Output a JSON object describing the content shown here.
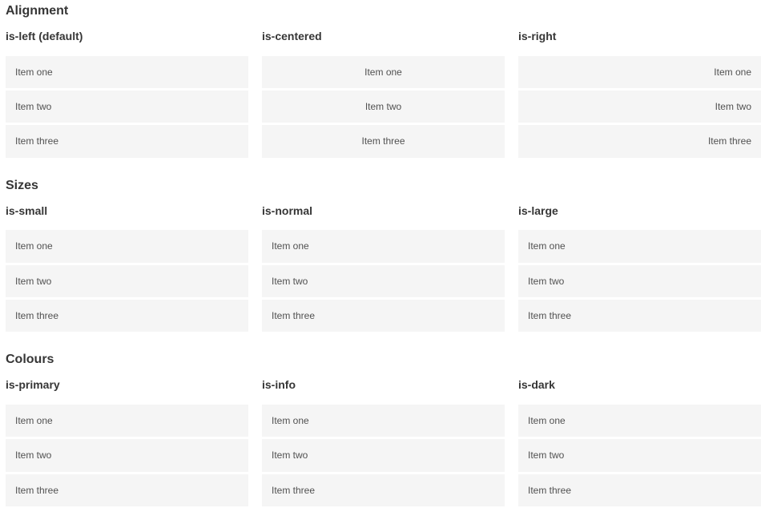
{
  "sections": [
    {
      "title": "Alignment",
      "groups": [
        {
          "label": "is-left (default)",
          "items": [
            "Item one",
            "Item two",
            "Item three"
          ]
        },
        {
          "label": "is-centered",
          "items": [
            "Item one",
            "Item two",
            "Item three"
          ]
        },
        {
          "label": "is-right",
          "items": [
            "Item one",
            "Item two",
            "Item three"
          ]
        }
      ]
    },
    {
      "title": "Sizes",
      "groups": [
        {
          "label": "is-small",
          "items": [
            "Item one",
            "Item two",
            "Item three"
          ]
        },
        {
          "label": "is-normal",
          "items": [
            "Item one",
            "Item two",
            "Item three"
          ]
        },
        {
          "label": "is-large",
          "items": [
            "Item one",
            "Item two",
            "Item three"
          ]
        }
      ]
    },
    {
      "title": "Colours",
      "groups": [
        {
          "label": "is-primary",
          "items": [
            "Item one",
            "Item two",
            "Item three"
          ]
        },
        {
          "label": "is-info",
          "items": [
            "Item one",
            "Item two",
            "Item three"
          ]
        },
        {
          "label": "is-dark",
          "items": [
            "Item one",
            "Item two",
            "Item three"
          ]
        }
      ]
    }
  ],
  "colors": {
    "primary": "#00d1b2",
    "info": "#3298dc",
    "dark": "#363636",
    "item_background": "#f5f5f5",
    "heading_text": "#363636",
    "item_text": "#515151",
    "item_text_on_color": "#ffffff"
  }
}
